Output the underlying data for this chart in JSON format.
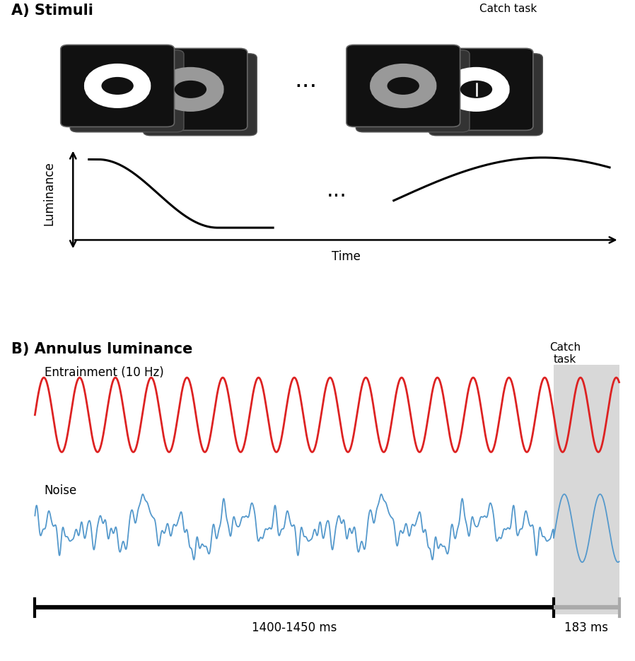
{
  "fig_width": 8.98,
  "fig_height": 9.35,
  "bg_color": "#ffffff",
  "panel_A_label": "A) Stimuli",
  "panel_B_label": "B) Annulus luminance",
  "catch_task_label_A": "Catch task",
  "catch_task_label_B": "Catch\ntask",
  "entrainment_label": "Entrainment (10 Hz)",
  "noise_label": "Noise",
  "time_label": "Time",
  "luminance_label": "Luminance",
  "ms_label_main": "1400-1450 ms",
  "ms_label_catch": "183 ms",
  "red_color": "#dd2222",
  "blue_color": "#5599cc",
  "dark_bg": "#111111",
  "card_edge": "#666666",
  "ring_white": "#ffffff",
  "ring_gray": "#999999",
  "catch_shade_color": "#d8d8d8",
  "entrainment_freq": 10,
  "noise_seed": 42,
  "main_duration": 1.45,
  "catch_duration": 0.183
}
